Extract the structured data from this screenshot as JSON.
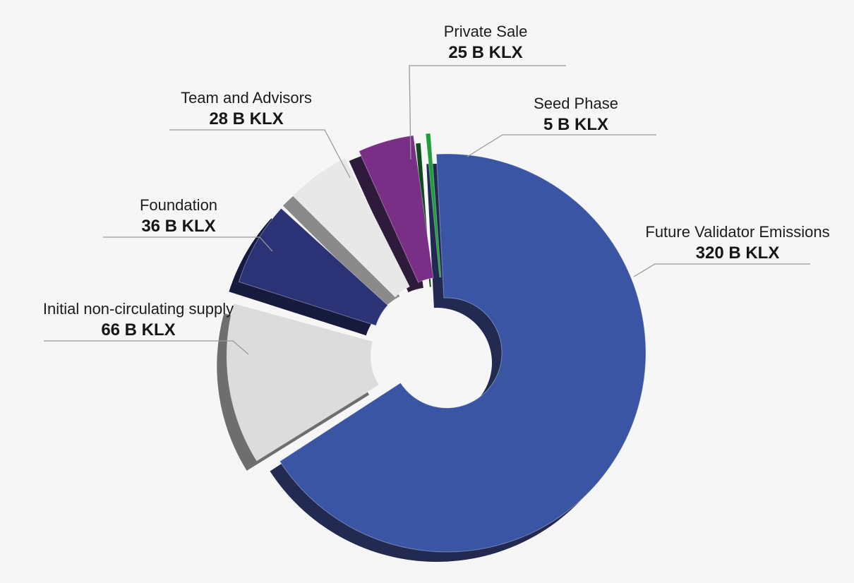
{
  "chart_data": {
    "type": "pie",
    "variant": "exploded 3D donut",
    "unit": "B KLX",
    "slices": [
      {
        "label": "Future Validator Emissions",
        "value": 320,
        "value_label": "320 B KLX",
        "color": "#3a55a4",
        "side_color": "#222a52"
      },
      {
        "label": "Initial non-circulating supply",
        "value": 66,
        "value_label": "66 B KLX",
        "color": "#dcdcdc",
        "side_color": "#6e6e6e"
      },
      {
        "label": "Foundation",
        "value": 36,
        "value_label": "36 B KLX",
        "color": "#2b3276",
        "side_color": "#161a3d"
      },
      {
        "label": "Team and Advisors",
        "value": 28,
        "value_label": "28 B KLX",
        "color": "#e8e8e8",
        "side_color": "#8a8a8a"
      },
      {
        "label": "Private Sale",
        "value": 25,
        "value_label": "25 B KLX",
        "color": "#7a2f87",
        "side_color": "#2e1a3a"
      },
      {
        "label": "Seed Phase",
        "value": 5,
        "value_label": "5 B KLX",
        "color": "#1f9e3a",
        "side_color": "#0f4a1c"
      }
    ]
  }
}
